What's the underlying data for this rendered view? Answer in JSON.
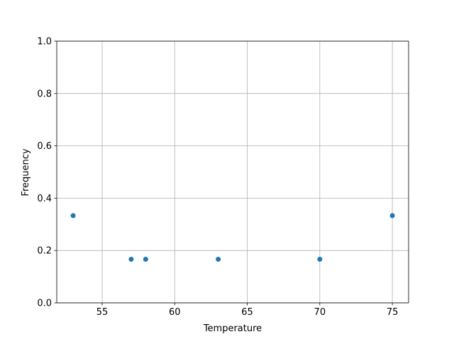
{
  "chart_data": {
    "type": "scatter",
    "title": "",
    "xlabel": "Temperature",
    "ylabel": "Frequency",
    "xlim": [
      51.87,
      76.12
    ],
    "ylim": [
      0,
      1
    ],
    "xticks": [
      55,
      60,
      65,
      70,
      75
    ],
    "xtick_labels": [
      "55",
      "60",
      "65",
      "70",
      "75"
    ],
    "yticks": [
      0,
      0.2,
      0.4,
      0.6,
      0.8,
      1.0
    ],
    "ytick_labels": [
      "0.0",
      "0.2",
      "0.4",
      "0.6",
      "0.8",
      "1.0"
    ],
    "grid": true,
    "marker_color": "#1f77b4",
    "points": [
      {
        "x": 53,
        "y": 0.3333
      },
      {
        "x": 57,
        "y": 0.1667
      },
      {
        "x": 58,
        "y": 0.1667
      },
      {
        "x": 63,
        "y": 0.1667
      },
      {
        "x": 70,
        "y": 0.1667
      },
      {
        "x": 75,
        "y": 0.3333
      }
    ]
  }
}
